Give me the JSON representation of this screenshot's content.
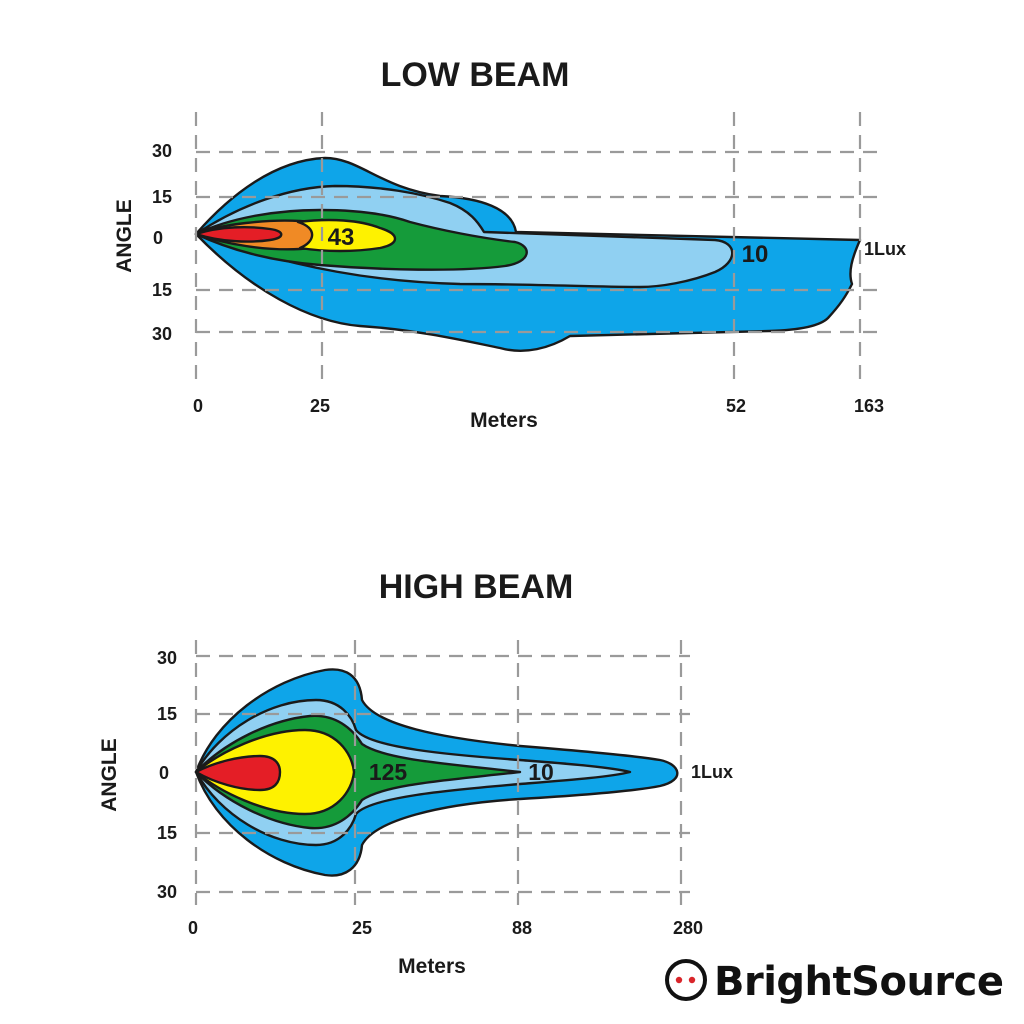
{
  "brand": {
    "name": "BrightSource",
    "logo_color": "#d9252a"
  },
  "colors": {
    "outer": "#0ea5e9",
    "light": "#90d0f2",
    "green": "#159b3a",
    "orange": "#f08a25",
    "yellow": "#fef200",
    "red": "#e41e26"
  },
  "chart_data": [
    {
      "type": "beam-pattern",
      "title": "LOW BEAM",
      "xlabel": "Meters",
      "ylabel": "ANGLE",
      "y_ticks": [
        "30",
        "15",
        "0",
        "15",
        "30"
      ],
      "x_ticks": [
        "0",
        "25",
        "52",
        "163"
      ],
      "x_distance_m": [
        0,
        25,
        52,
        163
      ],
      "angle_values_deg": [
        30,
        15,
        0,
        -15,
        -30
      ],
      "zones": [
        {
          "name": "outer",
          "color": "#0ea5e9"
        },
        {
          "name": "light",
          "color": "#90d0f2"
        },
        {
          "name": "green",
          "color": "#159b3a"
        },
        {
          "name": "orange",
          "color": "#f08a25"
        },
        {
          "name": "yellow",
          "color": "#fef200"
        },
        {
          "name": "red",
          "color": "#e41e26"
        }
      ],
      "labels": [
        {
          "text": "43",
          "zone": "yellow"
        },
        {
          "text": "10",
          "zone": "light"
        },
        {
          "text": "1Lux",
          "zone": "outer"
        }
      ],
      "grid": true
    },
    {
      "type": "beam-pattern",
      "title": "HIGH BEAM",
      "xlabel": "Meters",
      "ylabel": "ANGLE",
      "y_ticks": [
        "30",
        "15",
        "0",
        "15",
        "30"
      ],
      "x_ticks": [
        "0",
        "25",
        "88",
        "280"
      ],
      "x_distance_m": [
        0,
        25,
        88,
        280
      ],
      "angle_values_deg": [
        30,
        15,
        0,
        -15,
        -30
      ],
      "zones": [
        {
          "name": "outer",
          "color": "#0ea5e9"
        },
        {
          "name": "light",
          "color": "#90d0f2"
        },
        {
          "name": "green",
          "color": "#159b3a"
        },
        {
          "name": "yellow",
          "color": "#fef200"
        },
        {
          "name": "red",
          "color": "#e41e26"
        }
      ],
      "labels": [
        {
          "text": "125",
          "zone": "yellow"
        },
        {
          "text": "10",
          "zone": "light"
        },
        {
          "text": "1Lux",
          "zone": "outer"
        }
      ],
      "grid": true
    }
  ]
}
